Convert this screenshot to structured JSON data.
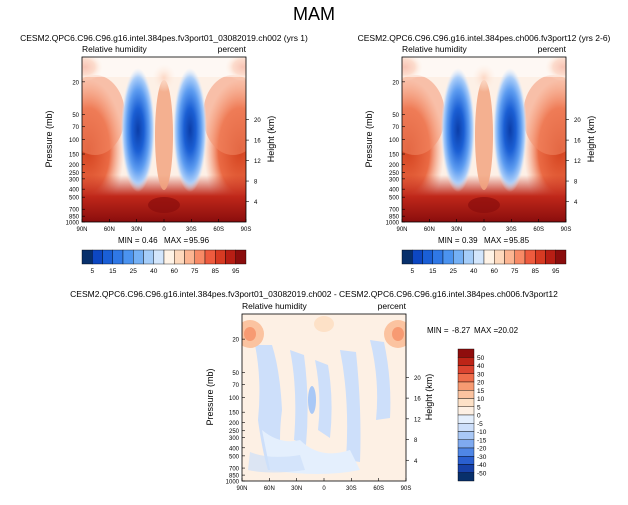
{
  "page": {
    "title": "MAM"
  },
  "colors": {
    "levels_main": [
      "#08306b",
      "#0d47c2",
      "#1a5fd6",
      "#2f78e6",
      "#4b93ef",
      "#74b0f5",
      "#a5cdf9",
      "#d3e6fc",
      "#fff3e6",
      "#fed9bd",
      "#fcb592",
      "#f88a66",
      "#ee5b3e",
      "#d73a22",
      "#b71e14",
      "#8a0d0d"
    ],
    "levels_diff": [
      "#08306b",
      "#1741a8",
      "#2a5fd0",
      "#4f86e6",
      "#7faaf0",
      "#a9c8f6",
      "#cddffa",
      "#e4effd",
      "#fdf0e4",
      "#fde1c7",
      "#fbc3a0",
      "#f79a72",
      "#ef6d4b",
      "#dc4430",
      "#bd2417",
      "#8f0d0d"
    ]
  },
  "chart_data": [
    {
      "type": "heatmap",
      "name": "panel-1",
      "title": "CESM2.QPC6.C96.C96.g16.intel.384pes.fv3port01_03082019.ch002 (yrs 1)",
      "left_label": "Relative humidity",
      "right_label": "percent",
      "ylabel": "Pressure (mb)",
      "ylabel_right": "Height (km)",
      "x_ticks": [
        "90N",
        "60N",
        "30N",
        "0",
        "30S",
        "60S",
        "90S"
      ],
      "y_ticks": [
        "20",
        "50",
        "70",
        "100",
        "150",
        "200",
        "250",
        "300",
        "400",
        "500",
        "700",
        "850",
        "1000"
      ],
      "height_ticks": [
        "4",
        "8",
        "12",
        "16",
        "20"
      ],
      "stats": {
        "min_label": "MIN =",
        "min": "0.46",
        "max_label": "MAX =",
        "max": "95.96"
      }
    },
    {
      "type": "heatmap",
      "name": "panel-2",
      "title": "CESM2.QPC6.C96.C96.g16.intel.384pes.ch006.fv3port12 (yrs 2-6)",
      "left_label": "Relative humidity",
      "right_label": "percent",
      "ylabel": "Pressure (mb)",
      "ylabel_right": "Height (km)",
      "x_ticks": [
        "90N",
        "60N",
        "30N",
        "0",
        "30S",
        "60S",
        "90S"
      ],
      "y_ticks": [
        "20",
        "50",
        "70",
        "100",
        "150",
        "200",
        "250",
        "300",
        "400",
        "500",
        "700",
        "850",
        "1000"
      ],
      "height_ticks": [
        "4",
        "8",
        "12",
        "16",
        "20"
      ],
      "stats": {
        "min_label": "MIN =",
        "min": "0.39",
        "max_label": "MAX =",
        "max": "95.85"
      }
    },
    {
      "type": "heatmap",
      "name": "panel-3",
      "title": "CESM2.QPC6.C96.C96.g16.intel.384pes.fv3port01_03082019.ch002 - CESM2.QPC6.C96.C96.g16.intel.384pes.ch006.fv3port12",
      "left_label": "Relative humidity",
      "right_label": "percent",
      "ylabel": "Pressure (mb)",
      "ylabel_right": "Height (km)",
      "x_ticks": [
        "90N",
        "60N",
        "30N",
        "0",
        "30S",
        "60S",
        "90S"
      ],
      "y_ticks": [
        "20",
        "50",
        "70",
        "100",
        "150",
        "200",
        "250",
        "300",
        "400",
        "500",
        "700",
        "850",
        "1000"
      ],
      "height_ticks": [
        "4",
        "8",
        "12",
        "16",
        "20"
      ],
      "stats": {
        "min_label": "MIN =",
        "min": "-8.27",
        "max_label": "MAX =",
        "max": "20.02"
      }
    }
  ],
  "colorbar_main": {
    "labels": [
      "5",
      "15",
      "25",
      "40",
      "60",
      "75",
      "85",
      "95"
    ]
  },
  "colorbar_diff": {
    "labels": [
      "50",
      "40",
      "30",
      "20",
      "15",
      "10",
      "5",
      "0",
      "-5",
      "-10",
      "-15",
      "-20",
      "-30",
      "-40",
      "-50"
    ]
  }
}
